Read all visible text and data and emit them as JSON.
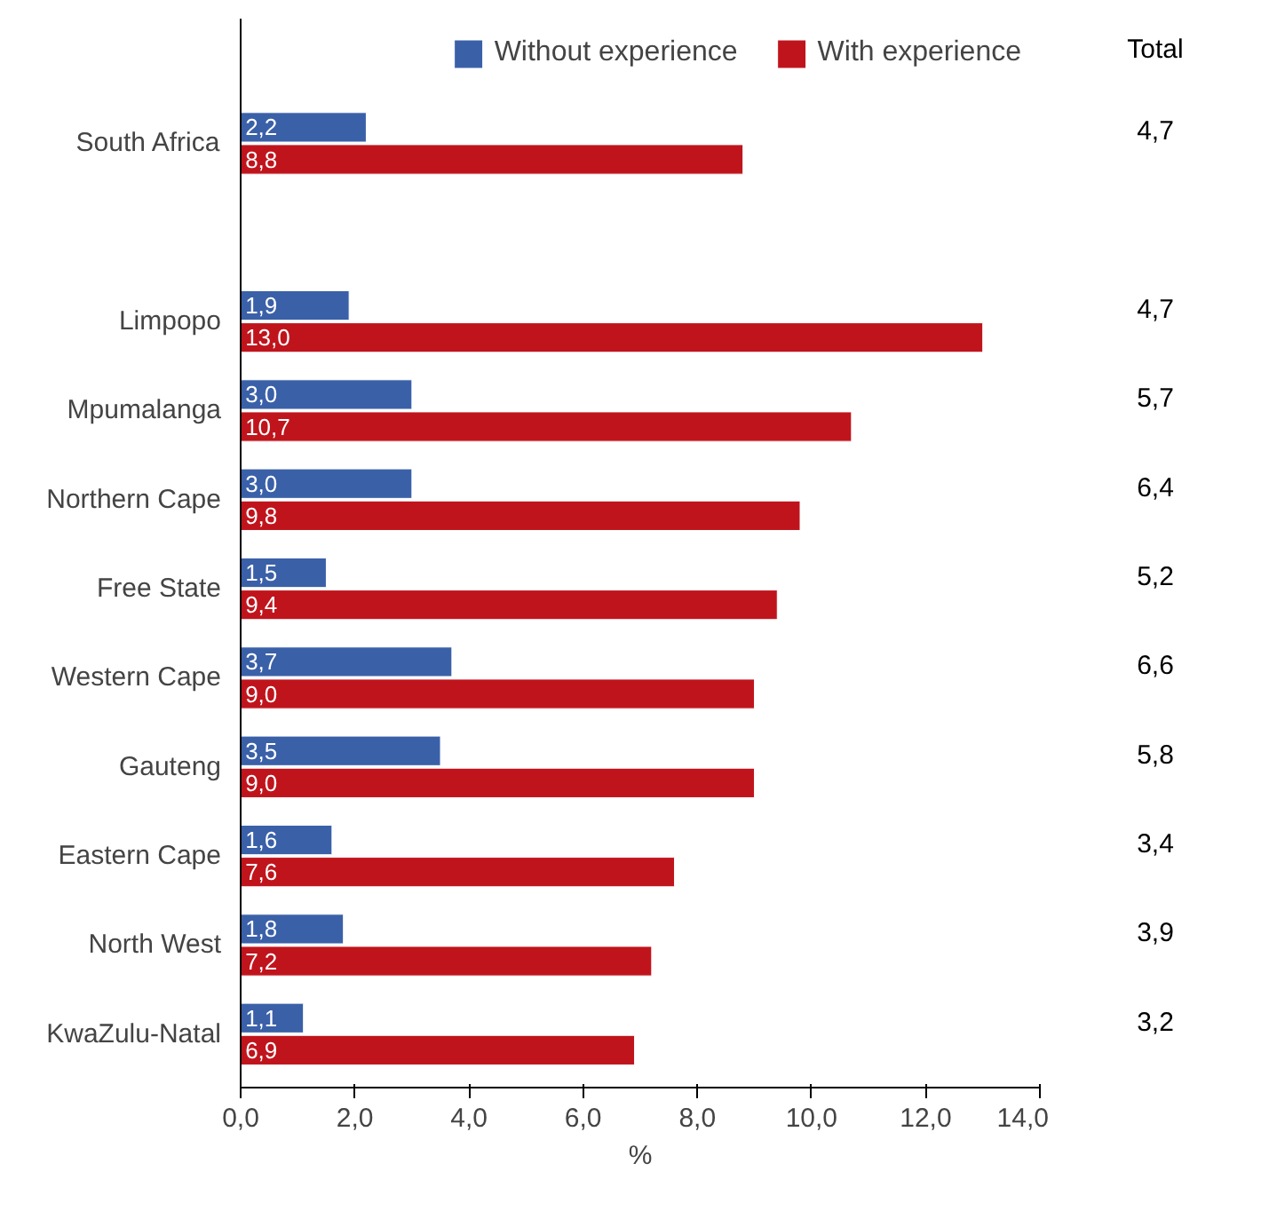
{
  "chart_data": {
    "type": "bar",
    "orientation": "horizontal",
    "xlabel": "%",
    "categories": [
      "South Africa",
      null,
      "Limpopo",
      "Mpumalanga",
      "Northern Cape",
      "Free State",
      "Western Cape",
      "Gauteng",
      "Eastern Cape",
      "North West",
      "KwaZulu-Natal"
    ],
    "series": [
      {
        "name": "Without experience",
        "color": "#3a60a8",
        "values": [
          2.2,
          null,
          1.9,
          3.0,
          3.0,
          1.5,
          3.7,
          3.5,
          1.6,
          1.8,
          1.1
        ],
        "value_labels": [
          "2,2",
          null,
          "1,9",
          "3,0",
          "3,0",
          "1,5",
          "3,7",
          "3,5",
          "1,6",
          "1,8",
          "1,1"
        ]
      },
      {
        "name": "With experience",
        "color": "#c0141c",
        "values": [
          8.8,
          null,
          13.0,
          10.7,
          9.8,
          9.4,
          9.0,
          9.0,
          7.6,
          7.2,
          6.9
        ],
        "value_labels": [
          "8,8",
          null,
          "13,0",
          "10,7",
          "9,8",
          "9,4",
          "9,0",
          "9,0",
          "7,6",
          "7,2",
          "6,9"
        ]
      }
    ],
    "xlim": [
      0,
      14
    ],
    "xticks": [
      {
        "value": 0,
        "label": "0,0"
      },
      {
        "value": 2,
        "label": "2,0"
      },
      {
        "value": 4,
        "label": "4,0"
      },
      {
        "value": 6,
        "label": "6,0"
      },
      {
        "value": 8,
        "label": "8,0"
      },
      {
        "value": 10,
        "label": "10,0"
      },
      {
        "value": 12,
        "label": "12,0"
      },
      {
        "value": 14,
        "label": "14,0"
      }
    ],
    "grid": false,
    "legend": "top right",
    "annotations": [
      "Total",
      "4,7",
      "4,7",
      "5,7",
      "6,4",
      "5,2",
      "6,6",
      "5,8",
      "3,4",
      "3,9",
      "3,2"
    ]
  }
}
